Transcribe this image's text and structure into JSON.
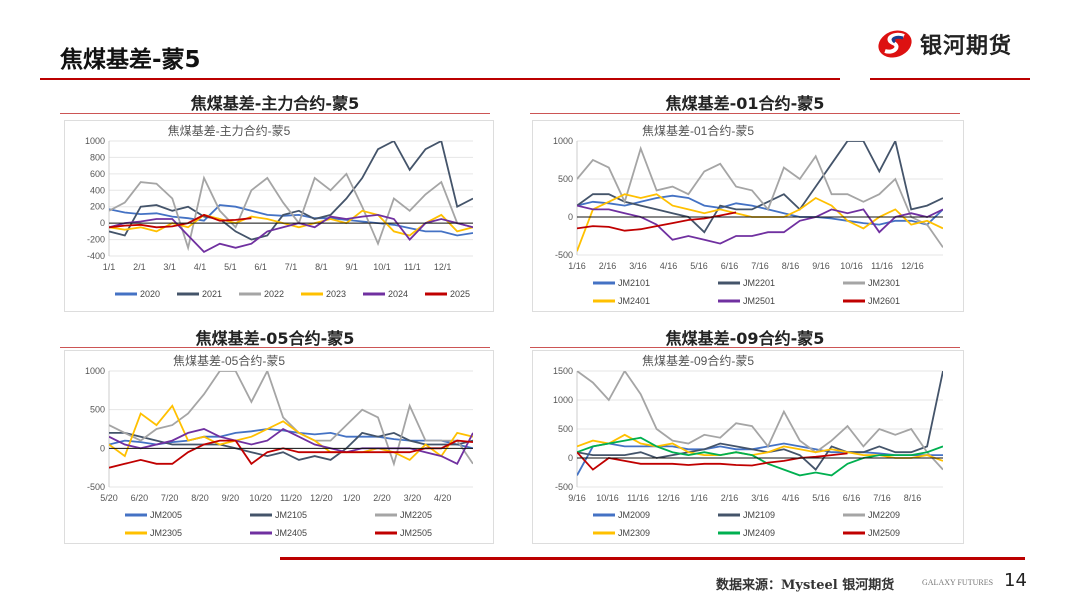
{
  "header": {
    "title": "焦煤基差-蒙5",
    "logo_text": "银河期货",
    "logo_icon": "galaxy-s-logo"
  },
  "footer": {
    "source": "数据来源：Mysteel 银河期货",
    "brand": "GALAXY FUTURES",
    "page": "14"
  },
  "colors": {
    "accent": "#C00000"
  },
  "chart_data": [
    {
      "panel_title": "焦煤基差-主力合约-蒙5",
      "title": "焦煤基差-主力合约-蒙5",
      "type": "line",
      "ylim": [
        -400,
        1000
      ],
      "yticks": [
        1000,
        800,
        600,
        400,
        200,
        0,
        -200,
        -400
      ],
      "xticks": [
        "1/1",
        "2/1",
        "3/1",
        "4/1",
        "5/1",
        "6/1",
        "7/1",
        "8/1",
        "9/1",
        "10/1",
        "11/1",
        "12/1"
      ],
      "legend_rows": 1,
      "series": [
        {
          "name": "2020",
          "color": "#4472C4",
          "values": [
            170,
            130,
            110,
            120,
            80,
            60,
            30,
            220,
            200,
            150,
            100,
            90,
            100,
            60,
            60,
            40,
            20,
            0,
            -20,
            -60,
            -100,
            -100,
            -150,
            -120
          ]
        },
        {
          "name": "2021",
          "color": "#44546A",
          "values": [
            -100,
            -150,
            200,
            220,
            150,
            200,
            80,
            50,
            -100,
            -200,
            -150,
            100,
            150,
            50,
            100,
            300,
            550,
            900,
            1000,
            650,
            900,
            1000,
            200,
            300
          ]
        },
        {
          "name": "2022",
          "color": "#A5A5A5",
          "values": [
            150,
            250,
            500,
            480,
            300,
            -300,
            550,
            150,
            -50,
            400,
            550,
            250,
            0,
            550,
            400,
            600,
            200,
            -250,
            300,
            150,
            350,
            500,
            0,
            -50
          ]
        },
        {
          "name": "2023",
          "color": "#FFC000",
          "values": [
            -50,
            -80,
            -50,
            -100,
            0,
            -50,
            100,
            50,
            0,
            80,
            50,
            0,
            -50,
            0,
            50,
            0,
            150,
            100,
            -100,
            -150,
            0,
            100,
            -100,
            -50
          ]
        },
        {
          "name": "2024",
          "color": "#7030A0",
          "values": [
            -50,
            0,
            20,
            50,
            50,
            -150,
            -350,
            -250,
            -300,
            -250,
            -100,
            -50,
            0,
            -50,
            80,
            50,
            80,
            100,
            50,
            -200,
            0,
            50,
            0,
            -50
          ]
        },
        {
          "name": "2025",
          "color": "#C00000",
          "values": [
            -50,
            -30,
            -20,
            -50,
            -40,
            0,
            100,
            30,
            40,
            60
          ]
        }
      ]
    },
    {
      "panel_title": "焦煤基差-01合约-蒙5",
      "title": "焦煤基差-01合约-蒙5",
      "type": "line",
      "ylim": [
        -500,
        1000
      ],
      "yticks": [
        1000,
        500,
        0,
        -500
      ],
      "xticks": [
        "1/16",
        "2/16",
        "3/16",
        "4/16",
        "5/16",
        "6/16",
        "7/16",
        "8/16",
        "9/16",
        "10/16",
        "11/16",
        "12/16"
      ],
      "legend_rows": 2,
      "series": [
        {
          "name": "JM2101",
          "color": "#4472C4",
          "values": [
            150,
            200,
            180,
            150,
            200,
            250,
            280,
            250,
            150,
            120,
            180,
            150,
            100,
            50,
            0,
            0,
            -20,
            -50,
            -80,
            -100,
            -50,
            -50,
            -100,
            100
          ]
        },
        {
          "name": "JM2201",
          "color": "#44546A",
          "values": [
            150,
            300,
            300,
            200,
            150,
            100,
            50,
            0,
            -200,
            150,
            100,
            100,
            200,
            300,
            100,
            400,
            700,
            1000,
            1000,
            600,
            1000,
            100,
            150,
            250
          ]
        },
        {
          "name": "JM2301",
          "color": "#A5A5A5",
          "values": [
            500,
            750,
            650,
            200,
            900,
            350,
            400,
            300,
            600,
            700,
            400,
            350,
            100,
            650,
            500,
            800,
            300,
            300,
            200,
            300,
            500,
            0,
            -100,
            -400
          ]
        },
        {
          "name": "JM2401",
          "color": "#FFC000",
          "values": [
            -450,
            100,
            200,
            300,
            250,
            300,
            150,
            100,
            50,
            100,
            50,
            0,
            0,
            0,
            100,
            250,
            150,
            -50,
            -150,
            0,
            100,
            -100,
            -50,
            -150
          ]
        },
        {
          "name": "JM2501",
          "color": "#7030A0",
          "values": [
            150,
            100,
            100,
            50,
            0,
            -100,
            -300,
            -250,
            -300,
            -350,
            -250,
            -250,
            -200,
            -200,
            -50,
            0,
            100,
            50,
            100,
            -200,
            0,
            50,
            0,
            100
          ]
        },
        {
          "name": "JM2601",
          "color": "#C00000",
          "values": [
            -150,
            -120,
            -130,
            -180,
            -160,
            -120,
            -80,
            -40,
            -20,
            20,
            60
          ]
        }
      ]
    },
    {
      "panel_title": "焦煤基差-05合约-蒙5",
      "title": "焦煤基差-05合约-蒙5",
      "type": "line",
      "ylim": [
        -500,
        1000
      ],
      "yticks": [
        1000,
        500,
        0,
        -500
      ],
      "xticks": [
        "5/20",
        "6/20",
        "7/20",
        "8/20",
        "9/20",
        "10/20",
        "11/20",
        "12/20",
        "1/20",
        "2/20",
        "3/20",
        "4/20"
      ],
      "legend_rows": 2,
      "series": [
        {
          "name": "JM2005",
          "color": "#4472C4",
          "values": [
            50,
            100,
            80,
            50,
            80,
            100,
            150,
            150,
            200,
            220,
            250,
            230,
            200,
            180,
            200,
            150,
            150,
            150,
            120,
            100,
            100,
            100,
            50,
            0
          ]
        },
        {
          "name": "JM2105",
          "color": "#44546A",
          "values": [
            200,
            200,
            150,
            100,
            50,
            50,
            50,
            50,
            0,
            -50,
            -100,
            -50,
            -150,
            -100,
            -150,
            0,
            200,
            150,
            200,
            100,
            50,
            50,
            50,
            100
          ]
        },
        {
          "name": "JM2205",
          "color": "#A5A5A5",
          "values": [
            300,
            200,
            100,
            250,
            300,
            450,
            700,
            1000,
            1000,
            600,
            1000,
            400,
            200,
            100,
            100,
            300,
            500,
            400,
            -200,
            550,
            100,
            100,
            100,
            -200
          ]
        },
        {
          "name": "JM2305",
          "color": "#FFC000",
          "values": [
            50,
            -100,
            450,
            300,
            550,
            100,
            150,
            50,
            100,
            150,
            250,
            350,
            200,
            100,
            -50,
            -50,
            -50,
            0,
            -50,
            -150,
            50,
            -100,
            200,
            150
          ]
        },
        {
          "name": "JM2405",
          "color": "#7030A0",
          "values": [
            150,
            50,
            0,
            50,
            100,
            200,
            250,
            150,
            100,
            50,
            100,
            250,
            150,
            50,
            0,
            -50,
            0,
            0,
            0,
            0,
            -50,
            -100,
            -200,
            200
          ]
        },
        {
          "name": "JM2505",
          "color": "#C00000",
          "values": [
            -250,
            -200,
            -150,
            -200,
            -200,
            -50,
            50,
            100,
            100,
            -200,
            -50,
            0,
            -50,
            -50,
            -50,
            -50,
            -50,
            -50,
            -50,
            -50,
            0,
            0,
            100,
            80
          ]
        }
      ]
    },
    {
      "panel_title": "焦煤基差-09合约-蒙5",
      "title": "焦煤基差-09合约-蒙5",
      "type": "line",
      "ylim": [
        -500,
        1500
      ],
      "yticks": [
        1500,
        1000,
        500,
        0,
        -500
      ],
      "xticks": [
        "9/16",
        "10/16",
        "11/16",
        "12/16",
        "1/16",
        "2/16",
        "3/16",
        "4/16",
        "5/16",
        "6/16",
        "7/16",
        "8/16"
      ],
      "legend_rows": 2,
      "series": [
        {
          "name": "JM2009",
          "color": "#4472C4",
          "values": [
            -300,
            200,
            250,
            200,
            200,
            200,
            200,
            150,
            150,
            200,
            150,
            150,
            200,
            250,
            200,
            150,
            100,
            100,
            100,
            80,
            50,
            50,
            50,
            50
          ]
        },
        {
          "name": "JM2109",
          "color": "#44546A",
          "values": [
            100,
            50,
            50,
            50,
            100,
            0,
            50,
            100,
            150,
            250,
            200,
            150,
            100,
            150,
            50,
            -200,
            200,
            100,
            100,
            200,
            100,
            100,
            200,
            1500
          ]
        },
        {
          "name": "JM2209",
          "color": "#A5A5A5",
          "values": [
            1500,
            1300,
            1000,
            1500,
            1100,
            500,
            300,
            250,
            400,
            350,
            600,
            550,
            200,
            800,
            300,
            100,
            300,
            550,
            200,
            500,
            400,
            500,
            100,
            -200
          ]
        },
        {
          "name": "JM2309",
          "color": "#FFC000",
          "values": [
            200,
            300,
            250,
            400,
            250,
            200,
            250,
            100,
            50,
            50,
            100,
            50,
            100,
            200,
            150,
            100,
            150,
            100,
            50,
            50,
            0,
            0,
            50,
            -50
          ]
        },
        {
          "name": "JM2409",
          "color": "#00B050",
          "values": [
            100,
            200,
            250,
            300,
            350,
            200,
            100,
            50,
            100,
            50,
            100,
            50,
            -100,
            -200,
            -300,
            -250,
            -300,
            -100,
            0,
            50,
            50,
            50,
            100,
            200
          ]
        },
        {
          "name": "JM2509",
          "color": "#C00000",
          "values": [
            100,
            -200,
            0,
            -50,
            -100,
            -100,
            -100,
            -120,
            -100,
            -100,
            -120,
            -130,
            -80,
            -50,
            0,
            20,
            50,
            80
          ]
        }
      ]
    }
  ]
}
